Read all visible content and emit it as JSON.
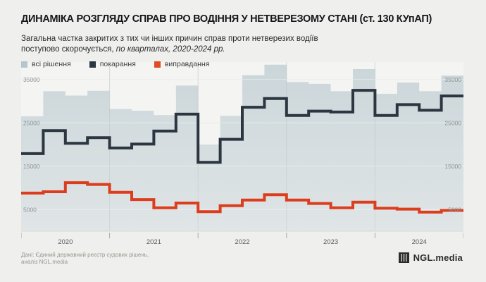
{
  "header": {
    "title": "ДИНАМІКА РОЗГЛЯДУ СПРАВ ПРО ВОДІННЯ У НЕТВЕРЕЗОМУ СТАНІ (ст. 130 КУпАП)",
    "subtitle_line1": "Загальна частка закритих з тих чи інших причин справ проти нетверезих водіїв",
    "subtitle_line2_regular": "поступово скорочується, ",
    "subtitle_line2_italic": "по кварталах, 2020-2024 рр."
  },
  "legend": {
    "items": [
      {
        "label": "всі рішення",
        "color": "#b4c5cd"
      },
      {
        "label": "покарання",
        "color": "#2c3640"
      },
      {
        "label": "виправдання",
        "color": "#e04a24"
      }
    ]
  },
  "chart_data": {
    "type": "area",
    "subtype": "step-area with step-lines, quarterly",
    "categories": [
      "2020-Q1",
      "2020-Q2",
      "2020-Q3",
      "2020-Q4",
      "2021-Q1",
      "2021-Q2",
      "2021-Q3",
      "2021-Q4",
      "2022-Q1",
      "2022-Q2",
      "2022-Q3",
      "2022-Q4",
      "2023-Q1",
      "2023-Q2",
      "2023-Q3",
      "2023-Q4",
      "2024-Q1",
      "2024-Q2",
      "2024-Q3",
      "2024-Q4"
    ],
    "year_labels": [
      "2020",
      "2021",
      "2022",
      "2023",
      "2024"
    ],
    "yticks": [
      5000,
      15000,
      25000,
      35000
    ],
    "ylim": [
      0,
      39000
    ],
    "grid": "horizontal + year boundaries",
    "legend_position": "top-left",
    "series": [
      {
        "name": "всі рішення",
        "render": "step-area",
        "color": "#cbd6da",
        "values": [
          26500,
          32300,
          31300,
          32400,
          28200,
          27800,
          26800,
          33600,
          20000,
          26600,
          36000,
          38400,
          34400,
          34000,
          32300,
          37400,
          31700,
          34300,
          32300,
          35900
        ]
      },
      {
        "name": "покарання",
        "render": "step-line",
        "color": "#2c3640",
        "values": [
          17900,
          23200,
          20300,
          21600,
          19200,
          20100,
          23100,
          27000,
          15900,
          21200,
          28600,
          30600,
          26700,
          27700,
          27500,
          32500,
          26700,
          29200,
          27900,
          31200
        ]
      },
      {
        "name": "виправдання",
        "render": "step-line",
        "color": "#dc3d1d",
        "values": [
          8800,
          9100,
          11200,
          10800,
          9000,
          7300,
          5400,
          6500,
          4500,
          5900,
          7200,
          8400,
          7200,
          6400,
          5400,
          6700,
          5300,
          5100,
          4400,
          4800
        ]
      }
    ],
    "colors": {
      "plot_background": "#f4f5f3",
      "page_background": "#efefed",
      "gridline": "#e0e2de",
      "axis_label": "#8e9295",
      "year_label": "#5a5b5e"
    }
  },
  "footer": {
    "line1": "Дані: Єдиний державний реєстр судових рішень,",
    "line2": "аналіз NGL.media"
  },
  "brand": {
    "text": "NGL.media"
  }
}
